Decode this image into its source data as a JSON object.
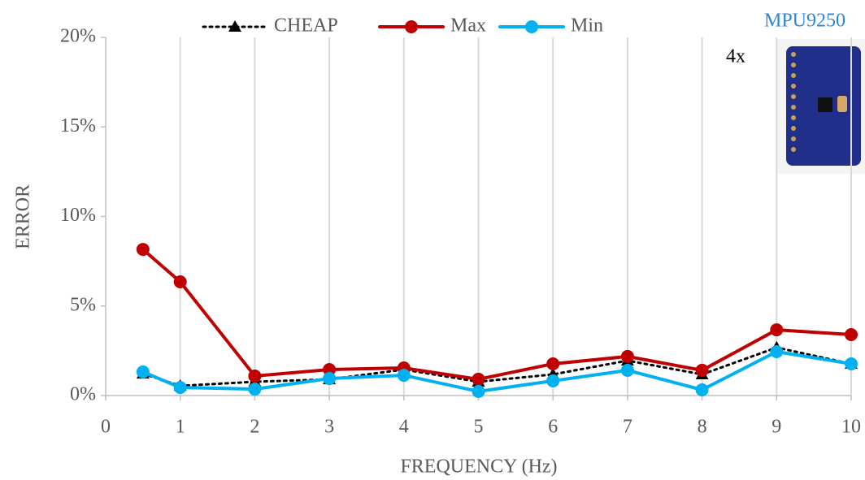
{
  "chart_data": {
    "type": "line",
    "x_label": "FREQUENCY (Hz)",
    "y_label": "ERROR",
    "annotations": [
      "MPU9250",
      "4x"
    ],
    "x": [
      0.5,
      1,
      2,
      3,
      4,
      5,
      6,
      7,
      8,
      9,
      10
    ],
    "series": [
      {
        "name": "CHEAP",
        "color": "#000000",
        "marker": "triangle",
        "dash": "dotted",
        "values": [
          1.22,
          0.54,
          0.77,
          0.9,
          1.45,
          0.77,
          1.18,
          1.95,
          1.18,
          2.68,
          1.77
        ]
      },
      {
        "name": "Max",
        "color": "#C00000",
        "marker": "circle",
        "dash": "solid",
        "values": [
          8.16,
          6.35,
          1.09,
          1.45,
          1.54,
          0.91,
          1.77,
          2.18,
          1.41,
          3.67,
          3.4
        ]
      },
      {
        "name": "Min",
        "color": "#00B0F0",
        "marker": "circle",
        "dash": "solid",
        "values": [
          1.32,
          0.45,
          0.36,
          0.95,
          1.13,
          0.23,
          0.82,
          1.41,
          0.32,
          2.45,
          1.77
        ]
      }
    ],
    "xlim": [
      0,
      10
    ],
    "xticks": [
      0,
      1,
      2,
      3,
      4,
      5,
      6,
      7,
      8,
      9,
      10
    ],
    "ylim": [
      0,
      20
    ],
    "yticks": [
      {
        "value": 0,
        "label": "0%"
      },
      {
        "value": 5,
        "label": "5%"
      },
      {
        "value": 10,
        "label": "10%"
      },
      {
        "value": 15,
        "label": "15%"
      },
      {
        "value": 20,
        "label": "20%"
      }
    ],
    "grid": "x",
    "legend": "top"
  }
}
